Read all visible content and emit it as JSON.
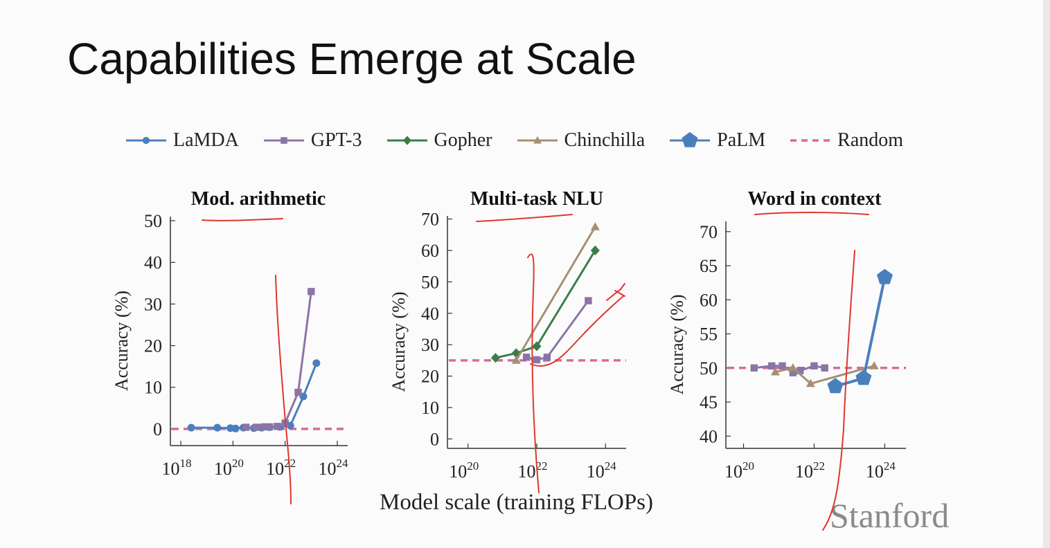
{
  "slide": {
    "title": "Capabilities Emerge at Scale",
    "logo_text": "Stanford"
  },
  "colors": {
    "LaMDA": "#4a7fbd",
    "GPT-3": "#8b74a6",
    "Gopher": "#3b7d4a",
    "Chinchilla": "#a68f72",
    "PaLM": "#4a7fbd",
    "Random": "#d96a98",
    "annotation_ink": "#e0352b"
  },
  "legend": [
    {
      "name": "LaMDA",
      "marker": "circle"
    },
    {
      "name": "GPT-3",
      "marker": "square"
    },
    {
      "name": "Gopher",
      "marker": "diamond"
    },
    {
      "name": "Chinchilla",
      "marker": "triangle"
    },
    {
      "name": "PaLM",
      "marker": "pentagon"
    },
    {
      "name": "Random",
      "marker": "dashed"
    }
  ],
  "shared_xlabel": "Model scale (training FLOPs)",
  "chart_data": [
    {
      "type": "line",
      "title": "Mod. arithmetic",
      "ylabel": "Accuracy (%)",
      "xscale": "log",
      "xlim_exp": [
        17.6,
        24.4
      ],
      "ylim": [
        -4,
        51
      ],
      "xticks_exp": [
        18,
        20,
        22,
        24
      ],
      "yticks": [
        0,
        10,
        20,
        30,
        40,
        50
      ],
      "random_baseline": 0,
      "series": [
        {
          "name": "LaMDA",
          "x_exp": [
            18.4,
            19.4,
            19.9,
            20.1,
            20.4,
            20.8,
            21.1,
            21.4,
            21.8,
            22.2,
            22.7,
            23.2
          ],
          "values": [
            0.3,
            0.3,
            0.2,
            0.1,
            0.3,
            0.2,
            0.3,
            0.4,
            0.5,
            0.8,
            7.8,
            15.8
          ]
        },
        {
          "name": "GPT-3",
          "x_exp": [
            20.5,
            20.9,
            21.2,
            21.4,
            21.7,
            22.0,
            22.5,
            23.0
          ],
          "values": [
            0.4,
            0.4,
            0.5,
            0.5,
            0.6,
            1.4,
            8.8,
            33
          ]
        }
      ]
    },
    {
      "type": "line",
      "title": "Multi-task NLU",
      "ylabel": "Accuracy (%)",
      "xscale": "log",
      "xlim_exp": [
        19.4,
        24.6
      ],
      "ylim": [
        -3,
        71
      ],
      "xticks_exp": [
        20,
        22,
        24
      ],
      "yticks": [
        0,
        10,
        20,
        30,
        40,
        50,
        60,
        70
      ],
      "random_baseline": 25,
      "series": [
        {
          "name": "GPT-3",
          "x_exp": [
            21.7,
            22.0,
            22.3,
            23.5
          ],
          "values": [
            26,
            25.2,
            26,
            44
          ]
        },
        {
          "name": "Gopher",
          "x_exp": [
            20.8,
            21.4,
            22.0,
            23.7
          ],
          "values": [
            25.8,
            27.3,
            29.5,
            60
          ]
        },
        {
          "name": "Chinchilla",
          "x_exp": [
            21.4,
            23.7
          ],
          "values": [
            25,
            67.5
          ]
        }
      ]
    },
    {
      "type": "line",
      "title": "Word in context",
      "ylabel": "Accuracy (%)",
      "xscale": "log",
      "xlim_exp": [
        19.5,
        24.6
      ],
      "ylim": [
        38.2,
        71.5
      ],
      "xticks_exp": [
        20,
        22,
        24
      ],
      "yticks": [
        40,
        45,
        50,
        55,
        60,
        65,
        70
      ],
      "random_baseline": 50,
      "series": [
        {
          "name": "GPT-3",
          "x_exp": [
            20.3,
            20.8,
            21.1,
            21.4,
            21.6,
            22.0,
            22.3
          ],
          "values": [
            50,
            50.3,
            50.3,
            49.3,
            49.6,
            50.3,
            50
          ]
        },
        {
          "name": "Chinchilla",
          "x_exp": [
            20.9,
            21.4,
            21.9,
            23.7
          ],
          "values": [
            49.4,
            50.0,
            47.7,
            50.3
          ]
        },
        {
          "name": "PaLM",
          "x_exp": [
            22.6,
            23.4,
            24.0
          ],
          "values": [
            47.3,
            48.5,
            63.3
          ]
        }
      ]
    }
  ]
}
